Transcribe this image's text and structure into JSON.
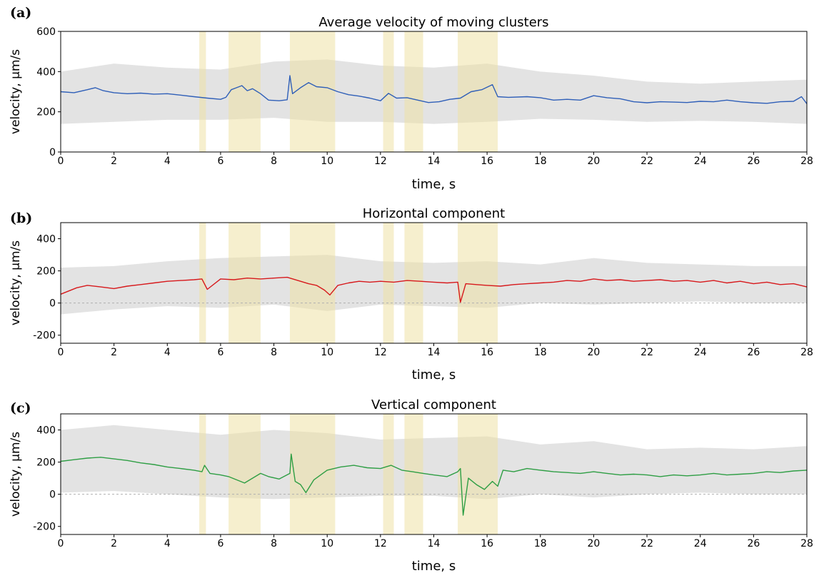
{
  "chart_data": [
    {
      "type": "line",
      "panel_label": "(a)",
      "title": "Average velocity of moving clusters",
      "xlabel": "time, s",
      "ylabel": "velocity, μm/s",
      "xlim": [
        0,
        28
      ],
      "ylim": [
        0,
        600
      ],
      "x_ticks": [
        0,
        2,
        4,
        6,
        8,
        10,
        12,
        14,
        16,
        18,
        20,
        22,
        24,
        26,
        28
      ],
      "y_ticks": [
        0,
        200,
        400,
        600
      ],
      "zero_line": false,
      "grid": false,
      "series": [
        {
          "color": "#2f5fb8",
          "x": [
            0,
            0.5,
            1.0,
            1.3,
            1.6,
            2.0,
            2.5,
            3.0,
            3.5,
            4.0,
            4.5,
            5.0,
            5.5,
            6.0,
            6.2,
            6.4,
            6.6,
            6.8,
            7.0,
            7.2,
            7.5,
            7.8,
            8.2,
            8.5,
            8.6,
            8.7,
            9.0,
            9.3,
            9.6,
            10.0,
            10.4,
            10.8,
            11.2,
            11.6,
            12.0,
            12.3,
            12.6,
            13.0,
            13.4,
            13.8,
            14.2,
            14.6,
            15.0,
            15.4,
            15.8,
            16.2,
            16.4,
            16.8,
            17.5,
            18.0,
            18.5,
            19.0,
            19.5,
            20.0,
            20.5,
            21.0,
            21.5,
            22.0,
            22.5,
            23.0,
            23.5,
            24.0,
            24.5,
            25.0,
            25.5,
            26.0,
            26.5,
            27.0,
            27.5,
            27.8,
            28.0
          ],
          "y": [
            300,
            295,
            310,
            320,
            305,
            295,
            290,
            293,
            288,
            290,
            283,
            275,
            268,
            262,
            272,
            310,
            320,
            330,
            305,
            315,
            290,
            258,
            255,
            260,
            380,
            290,
            320,
            345,
            325,
            320,
            300,
            285,
            278,
            268,
            255,
            292,
            268,
            270,
            258,
            246,
            250,
            262,
            268,
            300,
            310,
            335,
            275,
            272,
            275,
            270,
            258,
            262,
            258,
            280,
            270,
            265,
            250,
            245,
            250,
            248,
            246,
            252,
            250,
            258,
            250,
            245,
            242,
            250,
            252,
            275,
            240
          ]
        }
      ],
      "band_upper": [
        [
          0,
          400
        ],
        [
          1,
          420
        ],
        [
          2,
          440
        ],
        [
          4,
          420
        ],
        [
          6,
          410
        ],
        [
          8,
          450
        ],
        [
          10,
          460
        ],
        [
          12,
          430
        ],
        [
          14,
          420
        ],
        [
          16,
          440
        ],
        [
          18,
          400
        ],
        [
          20,
          380
        ],
        [
          22,
          350
        ],
        [
          24,
          340
        ],
        [
          26,
          350
        ],
        [
          28,
          360
        ]
      ],
      "band_lower": [
        [
          0,
          140
        ],
        [
          2,
          150
        ],
        [
          4,
          160
        ],
        [
          6,
          160
        ],
        [
          8,
          170
        ],
        [
          10,
          150
        ],
        [
          12,
          150
        ],
        [
          14,
          140
        ],
        [
          16,
          150
        ],
        [
          18,
          165
        ],
        [
          20,
          160
        ],
        [
          22,
          150
        ],
        [
          24,
          155
        ],
        [
          26,
          150
        ],
        [
          28,
          140
        ]
      ]
    },
    {
      "type": "line",
      "panel_label": "(b)",
      "title": "Horizontal component",
      "xlabel": "time, s",
      "ylabel": "velocity, μm/s",
      "xlim": [
        0,
        28
      ],
      "ylim": [
        -250,
        500
      ],
      "x_ticks": [
        0,
        2,
        4,
        6,
        8,
        10,
        12,
        14,
        16,
        18,
        20,
        22,
        24,
        26,
        28
      ],
      "y_ticks": [
        -200,
        0,
        200,
        400
      ],
      "zero_line": true,
      "grid": false,
      "series": [
        {
          "color": "#d7191c",
          "x": [
            0,
            0.3,
            0.6,
            1.0,
            1.5,
            2.0,
            2.5,
            3.0,
            3.5,
            4.0,
            4.5,
            5.0,
            5.3,
            5.5,
            6.0,
            6.5,
            7.0,
            7.5,
            8.0,
            8.5,
            9.0,
            9.3,
            9.6,
            9.9,
            10.1,
            10.4,
            10.8,
            11.2,
            11.6,
            12.0,
            12.5,
            13.0,
            13.5,
            14.0,
            14.5,
            14.9,
            15.0,
            15.2,
            15.6,
            16.0,
            16.5,
            17.0,
            17.5,
            18.0,
            18.5,
            19.0,
            19.5,
            20.0,
            20.5,
            21.0,
            21.5,
            22.0,
            22.5,
            23.0,
            23.5,
            24.0,
            24.5,
            25.0,
            25.5,
            26.0,
            26.5,
            27.0,
            27.5,
            28.0
          ],
          "y": [
            55,
            75,
            95,
            110,
            100,
            90,
            105,
            115,
            125,
            135,
            140,
            145,
            150,
            85,
            150,
            145,
            155,
            150,
            155,
            160,
            135,
            120,
            110,
            80,
            50,
            110,
            125,
            135,
            130,
            135,
            130,
            140,
            135,
            130,
            125,
            130,
            5,
            120,
            115,
            110,
            105,
            115,
            120,
            125,
            130,
            140,
            135,
            150,
            140,
            145,
            135,
            140,
            145,
            135,
            140,
            130,
            140,
            125,
            135,
            120,
            130,
            115,
            120,
            100
          ]
        }
      ],
      "band_upper": [
        [
          0,
          220
        ],
        [
          2,
          230
        ],
        [
          4,
          260
        ],
        [
          6,
          280
        ],
        [
          8,
          290
        ],
        [
          10,
          300
        ],
        [
          12,
          260
        ],
        [
          14,
          250
        ],
        [
          16,
          260
        ],
        [
          18,
          240
        ],
        [
          20,
          280
        ],
        [
          22,
          250
        ],
        [
          24,
          240
        ],
        [
          26,
          230
        ],
        [
          28,
          230
        ]
      ],
      "band_lower": [
        [
          0,
          -70
        ],
        [
          2,
          -40
        ],
        [
          4,
          -20
        ],
        [
          6,
          -30
        ],
        [
          8,
          -10
        ],
        [
          10,
          -50
        ],
        [
          12,
          -10
        ],
        [
          14,
          -20
        ],
        [
          16,
          -30
        ],
        [
          18,
          0
        ],
        [
          20,
          -10
        ],
        [
          22,
          0
        ],
        [
          24,
          10
        ],
        [
          26,
          0
        ],
        [
          28,
          0
        ]
      ]
    },
    {
      "type": "line",
      "panel_label": "(c)",
      "title": "Vertical component",
      "xlabel": "time, s",
      "ylabel": "velocity, μm/s",
      "xlim": [
        0,
        28
      ],
      "ylim": [
        -250,
        500
      ],
      "x_ticks": [
        0,
        2,
        4,
        6,
        8,
        10,
        12,
        14,
        16,
        18,
        20,
        22,
        24,
        26,
        28
      ],
      "y_ticks": [
        -200,
        0,
        200,
        400
      ],
      "zero_line": true,
      "grid": false,
      "series": [
        {
          "color": "#2e9e44",
          "x": [
            0,
            0.5,
            1.0,
            1.5,
            2.0,
            2.5,
            3.0,
            3.5,
            4.0,
            4.5,
            5.0,
            5.3,
            5.4,
            5.6,
            6.0,
            6.3,
            6.6,
            6.9,
            7.2,
            7.5,
            7.8,
            8.2,
            8.6,
            8.65,
            8.8,
            9.0,
            9.2,
            9.5,
            10.0,
            10.5,
            11.0,
            11.5,
            12.0,
            12.4,
            12.8,
            13.2,
            13.6,
            14.0,
            14.5,
            14.9,
            15.0,
            15.1,
            15.3,
            15.6,
            15.9,
            16.2,
            16.4,
            16.6,
            17.0,
            17.5,
            18.0,
            18.5,
            19.0,
            19.5,
            20.0,
            20.5,
            21.0,
            21.5,
            22.0,
            22.5,
            23.0,
            23.5,
            24.0,
            24.5,
            25.0,
            25.5,
            26.0,
            26.5,
            27.0,
            27.5,
            28.0
          ],
          "y": [
            205,
            215,
            225,
            230,
            220,
            210,
            195,
            185,
            170,
            160,
            150,
            140,
            180,
            130,
            120,
            110,
            90,
            70,
            100,
            130,
            110,
            95,
            130,
            250,
            80,
            60,
            10,
            90,
            150,
            170,
            180,
            165,
            160,
            180,
            150,
            140,
            130,
            120,
            110,
            140,
            160,
            -130,
            100,
            60,
            30,
            80,
            50,
            150,
            140,
            160,
            150,
            140,
            135,
            130,
            140,
            130,
            120,
            125,
            120,
            110,
            120,
            115,
            120,
            130,
            120,
            125,
            130,
            140,
            135,
            145,
            150
          ]
        }
      ],
      "band_upper": [
        [
          0,
          400
        ],
        [
          2,
          430
        ],
        [
          4,
          400
        ],
        [
          6,
          370
        ],
        [
          8,
          400
        ],
        [
          10,
          380
        ],
        [
          12,
          340
        ],
        [
          14,
          350
        ],
        [
          16,
          360
        ],
        [
          18,
          310
        ],
        [
          20,
          330
        ],
        [
          22,
          280
        ],
        [
          24,
          290
        ],
        [
          26,
          280
        ],
        [
          28,
          300
        ]
      ],
      "band_lower": [
        [
          0,
          10
        ],
        [
          2,
          20
        ],
        [
          4,
          0
        ],
        [
          6,
          -20
        ],
        [
          8,
          -30
        ],
        [
          10,
          -20
        ],
        [
          12,
          -10
        ],
        [
          14,
          -10
        ],
        [
          16,
          -30
        ],
        [
          18,
          0
        ],
        [
          20,
          -20
        ],
        [
          22,
          0
        ],
        [
          24,
          10
        ],
        [
          26,
          0
        ],
        [
          28,
          0
        ]
      ]
    }
  ],
  "highlight_intervals": [
    [
      5.2,
      5.45
    ],
    [
      6.3,
      7.5
    ],
    [
      8.6,
      10.3
    ],
    [
      12.1,
      12.5
    ],
    [
      12.9,
      13.6
    ],
    [
      14.9,
      16.4
    ]
  ],
  "colors": {
    "band": "#d9d9d9",
    "highlight": "#efe2a6",
    "zero_line": "#b0b0b0"
  }
}
